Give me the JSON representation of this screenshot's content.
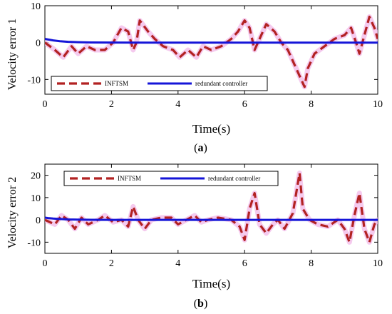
{
  "chart_data": [
    {
      "type": "line",
      "panel_label": "a",
      "xlabel": "Time(s)",
      "ylabel": "Velocity error 1",
      "xlim": [
        0,
        10
      ],
      "ylim": [
        -14,
        10
      ],
      "x_ticks": [
        "0",
        "2",
        "4",
        "6",
        "8",
        "10"
      ],
      "y_ticks": [
        "10",
        "0",
        "-10"
      ],
      "y_tick_values": [
        10,
        0,
        -10
      ],
      "legend_position": "bottom-left",
      "series": [
        {
          "name": "INFTSM",
          "color": "#B22222",
          "style": "dashed",
          "x": [
            0,
            0.3,
            0.55,
            0.8,
            1.0,
            1.25,
            1.5,
            1.8,
            2.05,
            2.3,
            2.5,
            2.65,
            2.75,
            2.85,
            3.1,
            3.3,
            3.55,
            3.85,
            4.05,
            4.3,
            4.55,
            4.75,
            5.0,
            5.3,
            5.6,
            5.8,
            6.0,
            6.15,
            6.3,
            6.45,
            6.65,
            6.9,
            7.1,
            7.3,
            7.6,
            7.8,
            7.9,
            8.1,
            8.4,
            8.7,
            9.0,
            9.2,
            9.35,
            9.45,
            9.6,
            9.75,
            9.9,
            10.0
          ],
          "y": [
            0,
            -2,
            -4,
            -1,
            -3,
            -1,
            -2,
            -2,
            0,
            4,
            3,
            -2,
            0,
            6,
            3,
            1,
            -1,
            -2,
            -4,
            -2,
            -4,
            -1,
            -2,
            -1,
            1,
            3,
            6,
            4,
            -2,
            1,
            5,
            3,
            0,
            -2,
            -8,
            -12,
            -7,
            -3,
            -1,
            1,
            2,
            4,
            0,
            -3,
            2,
            7,
            4,
            1
          ]
        },
        {
          "name": "redundant controller",
          "color": "#1515D8",
          "style": "solid",
          "x": [
            0,
            0.1,
            0.25,
            0.45,
            0.7,
            1.0,
            1.4,
            2.0,
            3.0,
            5.0,
            7.0,
            10.0
          ],
          "y": [
            1.0,
            0.82,
            0.6,
            0.38,
            0.2,
            0.1,
            0.04,
            0.01,
            0,
            0,
            0,
            0
          ]
        }
      ]
    },
    {
      "type": "line",
      "panel_label": "b",
      "xlabel": "Time(s)",
      "ylabel": "Velocity error 2",
      "xlim": [
        0,
        10
      ],
      "ylim": [
        -15,
        25
      ],
      "x_ticks": [
        "0",
        "2",
        "4",
        "6",
        "8",
        "10"
      ],
      "y_ticks": [
        "20",
        "10",
        "0",
        "-10"
      ],
      "y_tick_values": [
        20,
        10,
        0,
        -10
      ],
      "legend_position": "top-left",
      "series": [
        {
          "name": "INFTSM",
          "color": "#B22222",
          "style": "dashed",
          "x": [
            0,
            0.3,
            0.5,
            0.7,
            0.9,
            1.1,
            1.3,
            1.6,
            1.8,
            2.05,
            2.3,
            2.5,
            2.65,
            2.8,
            3.0,
            3.2,
            3.5,
            3.8,
            4.0,
            4.25,
            4.5,
            4.7,
            4.9,
            5.2,
            5.6,
            5.85,
            6.0,
            6.15,
            6.3,
            6.45,
            6.65,
            6.85,
            7.0,
            7.2,
            7.45,
            7.65,
            7.75,
            7.95,
            8.2,
            8.5,
            8.8,
            9.0,
            9.15,
            9.3,
            9.45,
            9.6,
            9.75,
            9.9,
            10.0
          ],
          "y": [
            0,
            -2,
            2,
            0,
            -4,
            1,
            -2,
            0,
            2,
            -1,
            0,
            -3,
            6,
            0,
            -4,
            0,
            1,
            1,
            -2,
            0,
            2,
            -1,
            0,
            1,
            0,
            -3,
            -9,
            5,
            12,
            -2,
            -6,
            -2,
            0,
            -4,
            3,
            21,
            5,
            0,
            -2,
            -3,
            0,
            -4,
            -10,
            2,
            12,
            -4,
            -10,
            -2,
            0
          ]
        },
        {
          "name": "redundant controller",
          "color": "#1515D8",
          "style": "solid",
          "x": [
            0,
            0.1,
            0.25,
            0.45,
            0.7,
            1.0,
            1.4,
            2.0,
            3.0,
            5.0,
            7.0,
            10.0
          ],
          "y": [
            1.0,
            0.82,
            0.6,
            0.38,
            0.2,
            0.1,
            0.04,
            0.01,
            0,
            0,
            0,
            0
          ]
        }
      ]
    }
  ]
}
